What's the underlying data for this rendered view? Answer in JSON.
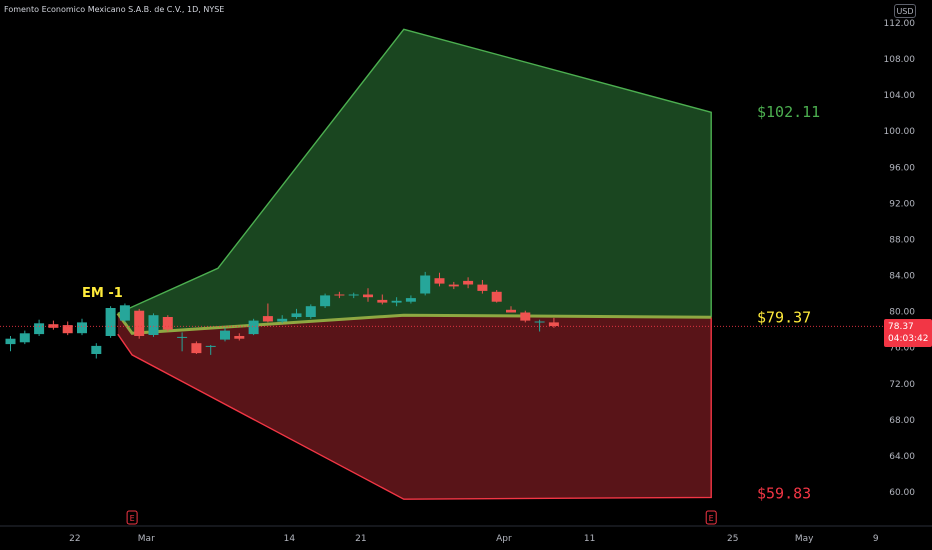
{
  "header": {
    "title": "Fomento Economico Mexicano S.A.B. de C.V., 1D, NYSE",
    "currency": "USD"
  },
  "price_badge": {
    "price": "78.37",
    "countdown": "04:03:42"
  },
  "annotations": {
    "em_label": "EM -1",
    "upper_label": "$102.11",
    "mid_label": "$79.37",
    "lower_label": "$59.83",
    "earnings_marker": "E"
  },
  "colors": {
    "background": "#000000",
    "up_candle": "#26a69a",
    "down_candle": "#ef5350",
    "upper_band": "#4caf50",
    "lower_band": "#f23645",
    "mid_line": "#8fa842",
    "em_label": "#ffeb3b",
    "mid_label": "#ffeb3b",
    "upper_label": "#4caf50",
    "lower_label": "#f23645"
  },
  "chart_data": {
    "type": "candlestick",
    "title": "Fomento Economico Mexicano S.A.B. de C.V., 1D, NYSE",
    "x_ticks": [
      "22",
      "Mar",
      "14",
      "21",
      "Apr",
      "11",
      "25",
      "May",
      "9"
    ],
    "y_ticks": [
      "60.00",
      "64.00",
      "68.00",
      "72.00",
      "76.00",
      "80.00",
      "84.00",
      "88.00",
      "92.00",
      "96.00",
      "100.00",
      "104.00",
      "108.00",
      "112.00"
    ],
    "y_range": [
      55.5,
      114.2
    ],
    "x_range": [
      0,
      49
    ],
    "x_tick_index": [
      4.5,
      9.5,
      19.5,
      24.5,
      34.5,
      40.5,
      50.5,
      55.5,
      60.5
    ],
    "candles": [
      {
        "i": 0,
        "o": 76.4,
        "h": 77.3,
        "l": 75.6,
        "c": 77.0
      },
      {
        "i": 1,
        "o": 76.6,
        "h": 77.9,
        "l": 76.4,
        "c": 77.6
      },
      {
        "i": 2,
        "o": 77.5,
        "h": 79.1,
        "l": 77.3,
        "c": 78.7
      },
      {
        "i": 3,
        "o": 78.6,
        "h": 79.0,
        "l": 78.0,
        "c": 78.2
      },
      {
        "i": 4,
        "o": 78.5,
        "h": 78.9,
        "l": 77.4,
        "c": 77.6
      },
      {
        "i": 5,
        "o": 77.6,
        "h": 79.2,
        "l": 77.4,
        "c": 78.8
      },
      {
        "i": 6,
        "o": 75.3,
        "h": 76.5,
        "l": 74.8,
        "c": 76.2
      },
      {
        "i": 7,
        "o": 77.3,
        "h": 80.6,
        "l": 77.1,
        "c": 80.4
      },
      {
        "i": 8,
        "o": 79.0,
        "h": 80.9,
        "l": 78.8,
        "c": 80.7
      },
      {
        "i": 9,
        "o": 80.1,
        "h": 80.3,
        "l": 77.0,
        "c": 77.3
      },
      {
        "i": 10,
        "o": 77.4,
        "h": 79.8,
        "l": 77.2,
        "c": 79.6
      },
      {
        "i": 11,
        "o": 79.4,
        "h": 79.6,
        "l": 77.8,
        "c": 78.0
      },
      {
        "i": 12,
        "o": 77.1,
        "h": 77.7,
        "l": 75.6,
        "c": 77.2
      },
      {
        "i": 13,
        "o": 76.5,
        "h": 76.7,
        "l": 75.3,
        "c": 75.4
      },
      {
        "i": 14,
        "o": 76.1,
        "h": 76.3,
        "l": 75.2,
        "c": 76.2
      },
      {
        "i": 15,
        "o": 76.9,
        "h": 78.2,
        "l": 76.7,
        "c": 77.9
      },
      {
        "i": 16,
        "o": 77.3,
        "h": 77.6,
        "l": 76.8,
        "c": 77.0
      },
      {
        "i": 17,
        "o": 77.5,
        "h": 79.2,
        "l": 77.4,
        "c": 79.0
      },
      {
        "i": 18,
        "o": 79.5,
        "h": 80.9,
        "l": 78.8,
        "c": 78.9
      },
      {
        "i": 19,
        "o": 78.9,
        "h": 79.6,
        "l": 78.7,
        "c": 79.2
      },
      {
        "i": 20,
        "o": 79.4,
        "h": 80.3,
        "l": 79.2,
        "c": 79.8
      },
      {
        "i": 21,
        "o": 79.4,
        "h": 80.8,
        "l": 79.2,
        "c": 80.6
      },
      {
        "i": 22,
        "o": 80.6,
        "h": 82.0,
        "l": 80.4,
        "c": 81.8
      },
      {
        "i": 23,
        "o": 81.9,
        "h": 82.2,
        "l": 81.5,
        "c": 81.8
      },
      {
        "i": 24,
        "o": 81.8,
        "h": 82.1,
        "l": 81.5,
        "c": 81.9
      },
      {
        "i": 25,
        "o": 81.9,
        "h": 82.6,
        "l": 81.1,
        "c": 81.6
      },
      {
        "i": 26,
        "o": 81.3,
        "h": 81.9,
        "l": 80.8,
        "c": 81.0
      },
      {
        "i": 27,
        "o": 81.0,
        "h": 81.6,
        "l": 80.6,
        "c": 81.2
      },
      {
        "i": 28,
        "o": 81.1,
        "h": 81.8,
        "l": 80.9,
        "c": 81.5
      },
      {
        "i": 29,
        "o": 82.0,
        "h": 84.4,
        "l": 81.8,
        "c": 84.0
      },
      {
        "i": 30,
        "o": 83.7,
        "h": 84.3,
        "l": 82.8,
        "c": 83.1
      },
      {
        "i": 31,
        "o": 83.0,
        "h": 83.3,
        "l": 82.5,
        "c": 82.8
      },
      {
        "i": 32,
        "o": 83.4,
        "h": 83.8,
        "l": 82.6,
        "c": 83.0
      },
      {
        "i": 33,
        "o": 83.0,
        "h": 83.5,
        "l": 82.0,
        "c": 82.3
      },
      {
        "i": 34,
        "o": 82.2,
        "h": 82.4,
        "l": 81.0,
        "c": 81.1
      },
      {
        "i": 35,
        "o": 80.2,
        "h": 80.6,
        "l": 79.9,
        "c": 79.9
      },
      {
        "i": 36,
        "o": 79.9,
        "h": 80.1,
        "l": 78.8,
        "c": 79.0
      },
      {
        "i": 37,
        "o": 78.8,
        "h": 79.1,
        "l": 77.8,
        "c": 78.9
      },
      {
        "i": 38,
        "o": 78.8,
        "h": 79.3,
        "l": 78.2,
        "c": 78.4
      }
    ],
    "expected_move": {
      "upper_path": [
        [
          7.5,
          79.8
        ],
        [
          14.5,
          84.8
        ],
        [
          27.5,
          111.3
        ],
        [
          49.0,
          102.1
        ]
      ],
      "lower_path": [
        [
          7.5,
          77.5
        ],
        [
          8.5,
          75.2
        ],
        [
          27.5,
          59.2
        ],
        [
          49.0,
          59.4
        ]
      ],
      "mid_path": [
        [
          7.5,
          79.8
        ],
        [
          8.5,
          77.6
        ],
        [
          27.5,
          79.6
        ],
        [
          49.0,
          79.37
        ]
      ],
      "upper_value": 102.11,
      "mid_value": 79.37,
      "lower_value": 59.83
    },
    "current_price": 78.37,
    "grid": false,
    "earnings_markers_index": [
      8.5,
      49.0
    ]
  }
}
